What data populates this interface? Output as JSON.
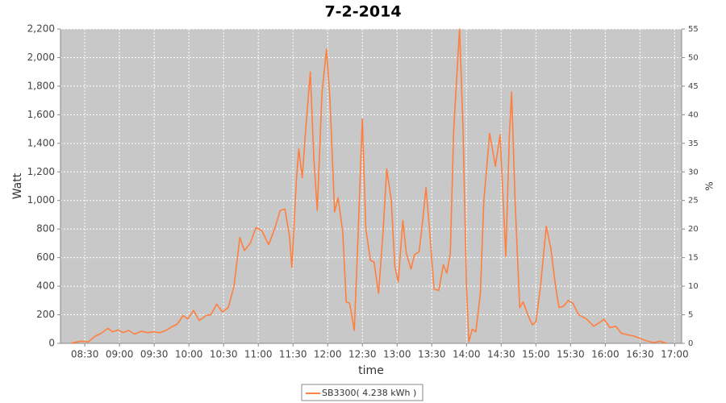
{
  "chart_data": {
    "type": "line",
    "title": "7-2-2014",
    "xlabel": "time",
    "ylabel": "Watt",
    "y2label": "%",
    "x": [
      "08:18",
      "08:23",
      "08:27",
      "08:33",
      "08:39",
      "08:44",
      "08:50",
      "08:54",
      "08:59",
      "09:03",
      "09:08",
      "09:13",
      "09:19",
      "09:24",
      "09:29",
      "09:35",
      "09:40",
      "09:45",
      "09:50",
      "09:55",
      "09:59",
      "10:04",
      "10:09",
      "10:15",
      "10:19",
      "10:24",
      "10:29",
      "10:34",
      "10:39",
      "10:44",
      "10:48",
      "10:53",
      "10:58",
      "11:03",
      "11:09",
      "11:14",
      "11:19",
      "11:23",
      "11:27",
      "11:29",
      "11:33",
      "11:35",
      "11:38",
      "11:41",
      "11:45",
      "11:48",
      "11:51",
      "11:55",
      "11:59",
      "12:02",
      "12:06",
      "12:09",
      "12:13",
      "12:16",
      "12:19",
      "12:23",
      "12:26",
      "12:30",
      "12:33",
      "12:37",
      "12:40",
      "12:44",
      "12:48",
      "12:51",
      "12:55",
      "12:58",
      "13:01",
      "13:05",
      "13:08",
      "13:12",
      "13:15",
      "13:19",
      "13:22",
      "13:25",
      "13:28",
      "13:32",
      "13:36",
      "13:40",
      "13:43",
      "13:46",
      "13:49",
      "13:54",
      "13:57",
      "14:00",
      "14:02",
      "14:05",
      "14:08",
      "14:12",
      "14:15",
      "14:20",
      "14:25",
      "14:29",
      "14:32",
      "14:34",
      "14:37",
      "14:39",
      "14:42",
      "14:46",
      "14:49",
      "14:53",
      "14:57",
      "15:00",
      "15:04",
      "15:09",
      "15:13",
      "15:17",
      "15:20",
      "15:24",
      "15:28",
      "15:32",
      "15:37",
      "15:44",
      "15:50",
      "15:56",
      "15:59",
      "16:04",
      "16:09",
      "16:14",
      "16:25",
      "16:35",
      "16:42",
      "16:47",
      "16:53"
    ],
    "series": [
      {
        "name": "SB3300( 4.238 kWh )",
        "color": "#ff7f3f",
        "values": [
          0,
          10,
          15,
          10,
          50,
          70,
          105,
          80,
          95,
          75,
          90,
          65,
          85,
          75,
          80,
          75,
          90,
          115,
          135,
          195,
          170,
          230,
          160,
          195,
          200,
          275,
          220,
          250,
          400,
          740,
          650,
          700,
          810,
          790,
          690,
          800,
          930,
          940,
          750,
          530,
          1150,
          1360,
          1160,
          1500,
          1900,
          1300,
          930,
          1750,
          2060,
          1700,
          920,
          1020,
          780,
          290,
          280,
          90,
          700,
          1570,
          800,
          580,
          570,
          350,
          800,
          1220,
          1000,
          540,
          430,
          860,
          630,
          520,
          620,
          640,
          850,
          1090,
          800,
          380,
          370,
          550,
          490,
          630,
          1500,
          2200,
          1500,
          400,
          10,
          100,
          80,
          350,
          1000,
          1470,
          1240,
          1460,
          950,
          610,
          1450,
          1760,
          1000,
          250,
          290,
          200,
          130,
          150,
          400,
          820,
          660,
          400,
          250,
          260,
          300,
          280,
          200,
          170,
          120,
          150,
          170,
          110,
          120,
          70,
          50,
          20,
          5,
          15,
          0
        ]
      }
    ],
    "xlim": [
      "08:09",
      "17:06"
    ],
    "xticks": [
      "08:30",
      "09:00",
      "09:30",
      "10:00",
      "10:30",
      "11:00",
      "11:30",
      "12:00",
      "12:30",
      "13:00",
      "13:30",
      "14:00",
      "14:30",
      "15:00",
      "15:30",
      "16:00",
      "16:30",
      "17:00"
    ],
    "ylim": [
      0,
      2200
    ],
    "yticks": [
      0,
      200,
      400,
      600,
      800,
      {
        "value": 1000,
        "label": "1,000"
      },
      {
        "value": 1200,
        "label": "1,200"
      },
      {
        "value": 1400,
        "label": "1,400"
      },
      {
        "value": 1600,
        "label": "1,600"
      },
      {
        "value": 1800,
        "label": "1,800"
      },
      {
        "value": 2000,
        "label": "2,000"
      },
      {
        "value": 2200,
        "label": "2,200"
      }
    ],
    "y2lim": [
      0,
      55
    ],
    "y2ticks": [
      0,
      5,
      10,
      15,
      20,
      25,
      30,
      35,
      40,
      45,
      50,
      55
    ],
    "grid": true
  }
}
